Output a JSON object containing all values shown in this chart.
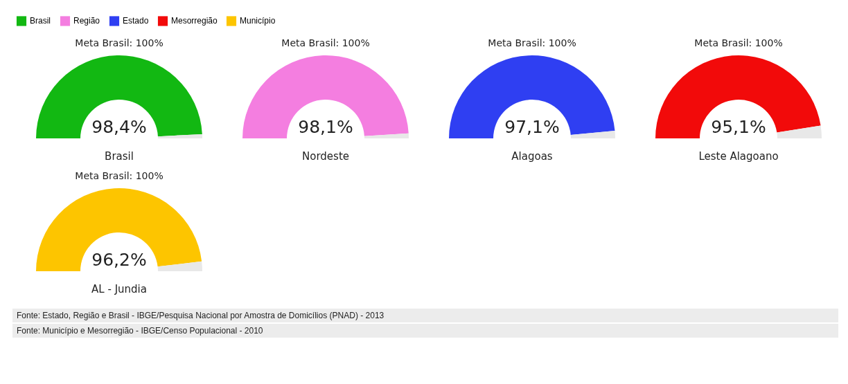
{
  "chart_data": [
    {
      "type": "donut",
      "title": "Meta Brasil: 100%",
      "xlabel": "Brasil",
      "categories": [
        "Brasil",
        null
      ],
      "values": [
        98.4,
        1.6
      ],
      "colors": [
        "#12b812",
        "#e8e8e8"
      ],
      "value_labels": [
        "98,4%",
        null
      ],
      "legend": "top"
    },
    {
      "type": "donut",
      "title": "Meta Brasil: 100%",
      "xlabel": "Nordeste",
      "categories": [
        "Região",
        null
      ],
      "values": [
        98.1,
        1.9
      ],
      "colors": [
        "#f47ee0",
        "#e8e8e8"
      ],
      "value_labels": [
        "98,1%",
        null
      ],
      "legend": "top"
    },
    {
      "type": "donut",
      "title": "Meta Brasil: 100%",
      "xlabel": "Alagoas",
      "categories": [
        "Estado",
        null
      ],
      "values": [
        97.1,
        2.9
      ],
      "colors": [
        "#2f3ff2",
        "#e8e8e8"
      ],
      "value_labels": [
        "97,1%",
        null
      ],
      "legend": "top"
    },
    {
      "type": "donut",
      "title": "Meta Brasil: 100%",
      "xlabel": "Leste Alagoano",
      "categories": [
        "Mesorregião",
        null
      ],
      "values": [
        95.1,
        4.9
      ],
      "colors": [
        "#f20a0a",
        "#e8e8e8"
      ],
      "value_labels": [
        "95,1%",
        null
      ],
      "legend": "top"
    },
    {
      "type": "donut",
      "title": "Meta Brasil: 100%",
      "xlabel": "AL - Jundia",
      "categories": [
        "Município",
        null
      ],
      "values": [
        96.2,
        3.8
      ],
      "colors": [
        "#fdc500",
        "#e8e8e8"
      ],
      "value_labels": [
        "96,2%",
        null
      ],
      "legend": "top",
      "annotations": [
        "Fonte: Estado, Região e Brasil - IBGE/Pesquisa Nacional por Amostra de Domicílios (PNAD) - 2013",
        "Fonte: Município e Mesorregião - IBGE/Censo Populacional - 2010"
      ]
    }
  ]
}
